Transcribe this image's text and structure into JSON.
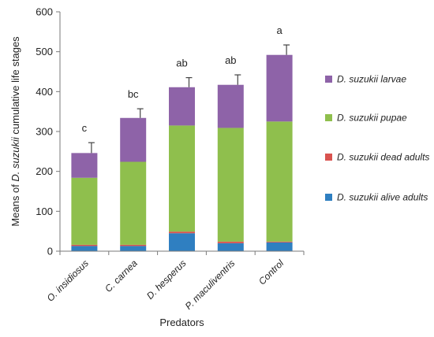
{
  "chart_data": {
    "type": "bar",
    "stacked": true,
    "categories": [
      "O. insidiosus",
      "C. carnea",
      "D. hesperus",
      "P. maculiventris",
      "Control"
    ],
    "series": [
      {
        "name": "D. suzukii alive adults",
        "color": "#2f7fc1",
        "values": [
          13,
          13,
          45,
          20,
          22
        ]
      },
      {
        "name": "D. suzukii dead adults",
        "color": "#d9534f",
        "values": [
          3,
          3,
          4,
          4,
          2
        ]
      },
      {
        "name": "D. suzukii pupae",
        "color": "#8fbf4d",
        "values": [
          168,
          208,
          266,
          285,
          301
        ]
      },
      {
        "name": "D. suzukii larvae",
        "color": "#8e63a8",
        "values": [
          62,
          110,
          96,
          108,
          167
        ]
      }
    ],
    "error_bars_upper": [
      26,
      23,
      24,
      25,
      25
    ],
    "significance_labels": [
      "c",
      "bc",
      "ab",
      "ab",
      "a"
    ],
    "xlabel": "Predators",
    "ylabel_parts": [
      "Means of ",
      "D. suzukii",
      " cumulative life stages"
    ],
    "ylim": [
      0,
      600
    ],
    "yticks": [
      0,
      100,
      200,
      300,
      400,
      500,
      600
    ],
    "legend_position": "right",
    "legend_order": [
      "D. suzukii larvae",
      "D. suzukii pupae",
      "D. suzukii dead adults",
      "D. suzukii alive adults"
    ]
  }
}
